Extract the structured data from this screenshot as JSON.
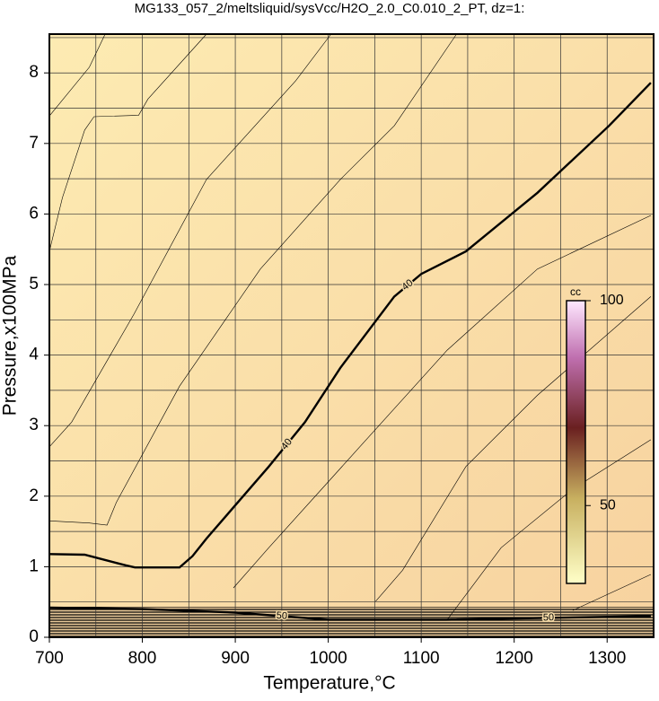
{
  "chart_data": {
    "type": "contour",
    "title": "MG133_057_2/meltsliquid/sysVcc/H2O_2.0_C0.010_2_PT, dz=1:",
    "x_label": "Temperature,°C",
    "y_label": "Pressure,x100MPa",
    "xlim": [
      700,
      1350
    ],
    "ylim": [
      0,
      8.55
    ],
    "xticks": [
      700,
      800,
      900,
      1000,
      1100,
      1200,
      1300
    ],
    "yticks": [
      0,
      1,
      2,
      3,
      4,
      5,
      6,
      7,
      8
    ],
    "xminorticks": [
      750,
      850,
      950,
      1050,
      1150,
      1250,
      1350
    ],
    "yminorticks": [
      0.5,
      1.5,
      2.5,
      3.5,
      4.5,
      5.5,
      6.5,
      7.5,
      8.5
    ],
    "grid": true,
    "series": [
      {
        "label": "40",
        "bold": true,
        "x": [
          700,
          738,
          782,
          792,
          840,
          854,
          869,
          936,
          975,
          1013,
          1071,
          1100,
          1148,
          1225,
          1302,
          1347
        ],
        "values": [
          1.18,
          1.17,
          1.02,
          0.99,
          0.99,
          1.15,
          1.4,
          2.42,
          3.05,
          3.82,
          4.83,
          5.15,
          5.47,
          6.3,
          7.25,
          7.86
        ]
      },
      {
        "label": "50",
        "bold": true,
        "x": [
          700,
          800,
          900,
          1000,
          1127,
          1347
        ],
        "values": [
          0.42,
          0.4,
          0.35,
          0.25,
          0.25,
          0.3
        ]
      },
      {
        "x": [
          700,
          743,
          760
        ],
        "values": [
          7.39,
          8.08,
          8.55
        ]
      },
      {
        "x": [
          700,
          714,
          738,
          748,
          796,
          806,
          869
        ],
        "values": [
          5.47,
          6.23,
          7.19,
          7.38,
          7.4,
          7.63,
          8.55
        ]
      },
      {
        "x": [
          700,
          724,
          791,
          869,
          965,
          1003
        ],
        "values": [
          2.7,
          3.05,
          4.58,
          6.49,
          7.89,
          8.55
        ]
      },
      {
        "x": [
          700,
          743,
          762,
          772,
          840,
          927,
          1013,
          1071,
          1138
        ],
        "values": [
          1.65,
          1.62,
          1.59,
          1.91,
          3.56,
          5.22,
          6.49,
          7.25,
          8.55
        ]
      },
      {
        "x": [
          898,
          936,
          1032,
          1128,
          1225,
          1347
        ],
        "values": [
          0.7,
          1.27,
          2.67,
          4.07,
          5.22,
          5.98
        ]
      },
      {
        "x": [
          1051,
          1080,
          1148,
          1225,
          1347
        ],
        "values": [
          0.51,
          0.95,
          2.42,
          3.43,
          4.83
        ]
      },
      {
        "x": [
          1128,
          1186,
          1263,
          1347
        ],
        "values": [
          0.25,
          1.27,
          2.1,
          2.8
        ]
      },
      {
        "x": [
          1263,
          1347
        ],
        "values": [
          0.38,
          0.89
        ]
      }
    ],
    "colorbar": {
      "label": "cc",
      "clim": [
        31,
        100
      ],
      "ticks": [
        50,
        100
      ]
    }
  }
}
